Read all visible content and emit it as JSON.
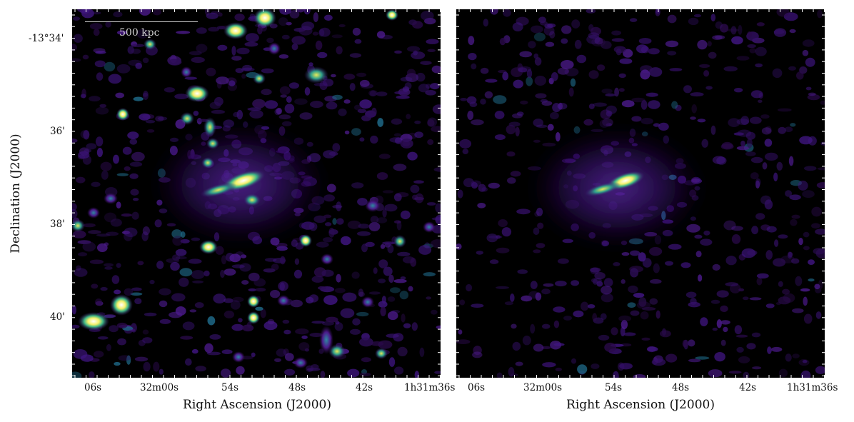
{
  "figure": {
    "panels": [
      {
        "name": "left",
        "scalebar_label": "500 kpc",
        "x_tick_labels": [
          "06s",
          "32m00s",
          "54s",
          "48s",
          "42s",
          "1h31m36s"
        ],
        "y_tick_labels": [
          "-13°34'",
          "36'",
          "38'",
          "40'"
        ]
      },
      {
        "name": "right",
        "x_tick_labels": [
          "06s",
          "32m00s",
          "54s",
          "48s",
          "42s",
          "1h31m36s"
        ]
      }
    ],
    "x_axis_label": "Right Ascension (J2000)",
    "y_axis_label": "Declination (J2000)",
    "colormap": [
      "#000000",
      "#2a0a4a",
      "#4a148c",
      "#1f6b8a",
      "#2fb48a",
      "#d8e33a",
      "#ffffff"
    ]
  }
}
